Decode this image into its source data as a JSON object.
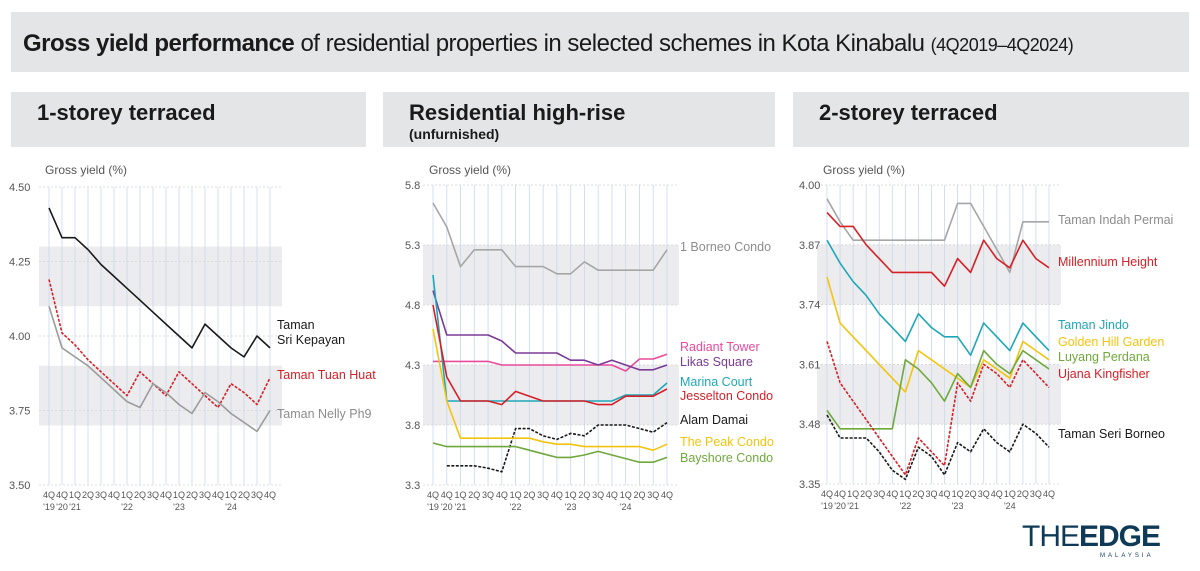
{
  "title": {
    "bold": "Gross yield performance",
    "rest": " of residential properties in selected schemes in Kota Kinabalu",
    "range": "(4Q2019–4Q2024)"
  },
  "logo": {
    "main_a": "THE",
    "main_b": "EDGE",
    "sub": "MALAYSIA"
  },
  "colors": {
    "panel_bg": "#e4e5e7",
    "band": "#ececee",
    "grid_vertical": "#c9d7ee"
  },
  "x_ticks": [
    [
      "4Q",
      "'19"
    ],
    [
      "4Q",
      "'20"
    ],
    [
      "1Q",
      "'21"
    ],
    [
      "2Q",
      ""
    ],
    [
      "3Q",
      ""
    ],
    [
      "4Q",
      ""
    ],
    [
      "1Q",
      "'22"
    ],
    [
      "2Q",
      ""
    ],
    [
      "3Q",
      ""
    ],
    [
      "4Q",
      ""
    ],
    [
      "1Q",
      "'23"
    ],
    [
      "2Q",
      ""
    ],
    [
      "3Q",
      ""
    ],
    [
      "4Q",
      ""
    ],
    [
      "1Q",
      "'24"
    ],
    [
      "2Q",
      ""
    ],
    [
      "3Q",
      ""
    ],
    [
      "4Q",
      ""
    ]
  ],
  "panels": [
    {
      "title": "1-storey terraced",
      "subtitle": ""
    },
    {
      "title": "Residential high-rise",
      "subtitle": "(unfurnished)"
    },
    {
      "title": "2-storey terraced",
      "subtitle": ""
    }
  ],
  "chart_data": [
    {
      "type": "line",
      "title": "1-storey terraced",
      "ylabel": "Gross yield (%)",
      "ylim": [
        3.5,
        4.5
      ],
      "yticks": [
        "4.50",
        "4.25",
        "4.00",
        "3.75",
        "3.50"
      ],
      "x": [
        "4Q '19",
        "4Q '20",
        "1Q '21",
        "2Q",
        "3Q",
        "4Q",
        "1Q '22",
        "2Q",
        "3Q",
        "4Q",
        "1Q '23",
        "2Q",
        "3Q",
        "4Q",
        "1Q '24",
        "2Q",
        "3Q",
        "4Q"
      ],
      "series": [
        {
          "name": "Taman Sri Kepayan",
          "label": [
            "Taman",
            "Sri Kepayan"
          ],
          "color": "#1a1a1a",
          "dash": false,
          "values": [
            4.43,
            4.33,
            4.33,
            4.29,
            4.24,
            4.2,
            4.16,
            4.12,
            4.08,
            4.04,
            4.0,
            3.96,
            4.04,
            4.0,
            3.96,
            3.93,
            4.0,
            3.96
          ]
        },
        {
          "name": "Taman Tuan Huat",
          "label": [
            "Taman Tuan Huat"
          ],
          "color": "#d62027",
          "dash": true,
          "values": [
            4.19,
            4.01,
            3.97,
            3.92,
            3.88,
            3.84,
            3.8,
            3.88,
            3.84,
            3.8,
            3.88,
            3.84,
            3.8,
            3.76,
            3.84,
            3.81,
            3.77,
            3.86
          ]
        },
        {
          "name": "Taman Nelly Ph9",
          "label": [
            "Taman Nelly Ph9"
          ],
          "color": "#9b9b9b",
          "dash": false,
          "values": [
            4.1,
            3.96,
            3.93,
            3.9,
            3.86,
            3.82,
            3.78,
            3.76,
            3.84,
            3.81,
            3.77,
            3.74,
            3.81,
            3.78,
            3.74,
            3.71,
            3.68,
            3.75
          ]
        }
      ]
    },
    {
      "type": "line",
      "title": "Residential high-rise (unfurnished)",
      "ylabel": "Gross yield (%)",
      "ylim": [
        3.3,
        5.8
      ],
      "yticks": [
        "5.8",
        "5.3",
        "4.8",
        "4.3",
        "3.8",
        "3.3"
      ],
      "x": [
        "4Q '19",
        "4Q '20",
        "1Q '21",
        "2Q",
        "3Q",
        "4Q",
        "1Q '22",
        "2Q",
        "3Q",
        "4Q",
        "1Q '23",
        "2Q",
        "3Q",
        "4Q",
        "1Q '24",
        "2Q",
        "3Q",
        "4Q"
      ],
      "series": [
        {
          "name": "1 Borneo Condo",
          "label": [
            "1 Borneo Condo"
          ],
          "color": "#a6a6a6",
          "dash": false,
          "values": [
            5.65,
            5.45,
            5.12,
            5.26,
            5.26,
            5.26,
            5.12,
            5.12,
            5.12,
            5.06,
            5.06,
            5.16,
            5.09,
            5.09,
            5.09,
            5.09,
            5.09,
            5.26
          ]
        },
        {
          "name": "Radiant Tower",
          "label": [
            "Radiant Tower"
          ],
          "color": "#e84a9c",
          "dash": false,
          "values": [
            4.33,
            4.33,
            4.33,
            4.33,
            4.33,
            4.3,
            4.3,
            4.3,
            4.3,
            4.3,
            4.3,
            4.3,
            4.3,
            4.3,
            4.25,
            4.35,
            4.35,
            4.39
          ]
        },
        {
          "name": "Likas Square",
          "label": [
            "Likas Square"
          ],
          "color": "#7b3a96",
          "dash": false,
          "values": [
            4.92,
            4.55,
            4.55,
            4.55,
            4.55,
            4.5,
            4.4,
            4.4,
            4.4,
            4.4,
            4.34,
            4.34,
            4.3,
            4.34,
            4.3,
            4.26,
            4.26,
            4.3
          ]
        },
        {
          "name": "Marina Court",
          "label": [
            "Marina Court"
          ],
          "color": "#1fa7b8",
          "dash": false,
          "values": [
            5.05,
            4.0,
            4.0,
            4.0,
            4.0,
            4.0,
            4.0,
            4.0,
            4.0,
            4.0,
            4.0,
            4.0,
            4.0,
            4.0,
            4.05,
            4.05,
            4.05,
            4.15
          ]
        },
        {
          "name": "Jesselton Condo",
          "label": [
            "Jesselton Condo"
          ],
          "color": "#d62027",
          "dash": false,
          "values": [
            4.8,
            4.2,
            4.0,
            4.0,
            4.0,
            3.97,
            4.08,
            4.04,
            4.0,
            4.0,
            4.0,
            4.0,
            3.97,
            3.97,
            4.04,
            4.04,
            4.04,
            4.1
          ]
        },
        {
          "name": "Alam Damai",
          "label": [
            "Alam Damai"
          ],
          "color": "#1a1a1a",
          "dash": true,
          "values": [
            null,
            3.46,
            3.46,
            3.46,
            3.44,
            3.41,
            3.77,
            3.77,
            3.71,
            3.68,
            3.73,
            3.71,
            3.8,
            3.8,
            3.8,
            3.77,
            3.74,
            3.82
          ]
        },
        {
          "name": "The Peak Condo",
          "label": [
            "The Peak Condo"
          ],
          "color": "#f2c40f",
          "dash": false,
          "values": [
            4.6,
            4.0,
            3.69,
            3.69,
            3.69,
            3.69,
            3.69,
            3.69,
            3.66,
            3.64,
            3.64,
            3.62,
            3.62,
            3.62,
            3.62,
            3.62,
            3.59,
            3.64
          ]
        },
        {
          "name": "Bayshore Condo",
          "label": [
            "Bayshore Condo"
          ],
          "color": "#6fa83b",
          "dash": false,
          "values": [
            3.65,
            3.62,
            3.62,
            3.62,
            3.62,
            3.62,
            3.62,
            3.59,
            3.56,
            3.53,
            3.53,
            3.55,
            3.58,
            3.55,
            3.52,
            3.49,
            3.49,
            3.53
          ]
        }
      ]
    },
    {
      "type": "line",
      "title": "2-storey terraced",
      "ylabel": "Gross yield (%)",
      "ylim": [
        3.35,
        4.0
      ],
      "yticks": [
        "4.00",
        "3.87",
        "3.74",
        "3.61",
        "3.48",
        "3.35"
      ],
      "x": [
        "4Q '19",
        "4Q '20",
        "1Q '21",
        "2Q",
        "3Q",
        "4Q",
        "1Q '22",
        "2Q",
        "3Q",
        "4Q",
        "1Q '23",
        "2Q",
        "3Q",
        "4Q",
        "1Q '24",
        "2Q",
        "3Q",
        "4Q"
      ],
      "series": [
        {
          "name": "Taman Indah Permai",
          "label": [
            "Taman Indah Permai"
          ],
          "color": "#a6a6a6",
          "dash": false,
          "values": [
            3.97,
            3.92,
            3.88,
            3.88,
            3.88,
            3.88,
            3.88,
            3.88,
            3.88,
            3.88,
            3.96,
            3.96,
            3.91,
            3.86,
            3.81,
            3.92,
            3.92,
            3.92
          ]
        },
        {
          "name": "Millennium Height",
          "label": [
            "Millennium Height"
          ],
          "color": "#d62027",
          "dash": false,
          "values": [
            3.94,
            3.91,
            3.91,
            3.87,
            3.84,
            3.81,
            3.81,
            3.81,
            3.81,
            3.78,
            3.84,
            3.81,
            3.88,
            3.84,
            3.82,
            3.88,
            3.84,
            3.82
          ]
        },
        {
          "name": "Taman Jindo",
          "label": [
            "Taman Jindo"
          ],
          "color": "#1fa7b8",
          "dash": false,
          "values": [
            3.88,
            3.83,
            3.79,
            3.76,
            3.72,
            3.69,
            3.66,
            3.72,
            3.69,
            3.67,
            3.67,
            3.63,
            3.7,
            3.67,
            3.64,
            3.7,
            3.67,
            3.64
          ]
        },
        {
          "name": "Golden Hill Garden",
          "label": [
            "Golden Hill Garden"
          ],
          "color": "#f2c40f",
          "dash": false,
          "values": [
            3.8,
            3.7,
            3.67,
            3.64,
            3.61,
            3.58,
            3.55,
            3.64,
            3.62,
            3.6,
            3.58,
            3.56,
            3.62,
            3.6,
            3.58,
            3.66,
            3.64,
            3.62
          ]
        },
        {
          "name": "Luyang Perdana",
          "label": [
            "Luyang Perdana"
          ],
          "color": "#6fa83b",
          "dash": false,
          "values": [
            3.51,
            3.47,
            3.47,
            3.47,
            3.47,
            3.47,
            3.62,
            3.6,
            3.57,
            3.53,
            3.59,
            3.56,
            3.64,
            3.61,
            3.59,
            3.64,
            3.62,
            3.6
          ]
        },
        {
          "name": "Ujana Kingfisher",
          "label": [
            "Ujana Kingfisher"
          ],
          "color": "#d62027",
          "dash": true,
          "values": [
            3.66,
            3.57,
            3.53,
            3.49,
            3.45,
            3.41,
            3.37,
            3.45,
            3.42,
            3.39,
            3.57,
            3.53,
            3.61,
            3.59,
            3.56,
            3.62,
            3.59,
            3.56
          ]
        },
        {
          "name": "Taman Seri Borneo",
          "label": [
            "Taman Seri Borneo"
          ],
          "color": "#1a1a1a",
          "dash": true,
          "values": [
            3.5,
            3.45,
            3.45,
            3.45,
            3.42,
            3.38,
            3.36,
            3.43,
            3.41,
            3.37,
            3.44,
            3.42,
            3.47,
            3.44,
            3.42,
            3.48,
            3.46,
            3.43
          ]
        }
      ]
    }
  ]
}
